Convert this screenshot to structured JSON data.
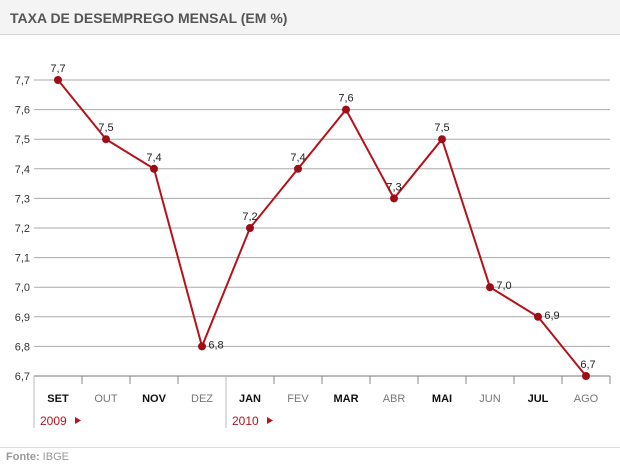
{
  "title": "TAXA DE DESEMPREGO MENSAL (EM %)",
  "source": {
    "label": "Fonte:",
    "value": "IBGE"
  },
  "chart_data": {
    "type": "line",
    "title": "TAXA DE DESEMPREGO MENSAL (EM %)",
    "categories": [
      "SET",
      "OUT",
      "NOV",
      "DEZ",
      "JAN",
      "FEV",
      "MAR",
      "ABR",
      "MAI",
      "JUN",
      "JUL",
      "AGO"
    ],
    "bold_categories": [
      "SET",
      "NOV",
      "JAN",
      "MAR",
      "MAI",
      "JUL"
    ],
    "values": [
      7.7,
      7.5,
      7.4,
      6.8,
      7.2,
      7.4,
      7.6,
      7.3,
      7.5,
      7.0,
      6.9,
      6.7
    ],
    "value_labels": [
      "7,7",
      "7,5",
      "7,4",
      "6,8",
      "7,2",
      "7,4",
      "7,6",
      "7,3",
      "7,5",
      "7,0",
      "6,9",
      "6,7"
    ],
    "yticks": [
      "6,7",
      "6,8",
      "6,9",
      "7,0",
      "7,1",
      "7,2",
      "7,3",
      "7,4",
      "7,5",
      "7,6",
      "7,7"
    ],
    "ylim": [
      6.7,
      7.7
    ],
    "years": [
      {
        "label": "2009",
        "start": "SET"
      },
      {
        "label": "2010",
        "start": "JAN"
      }
    ],
    "grid": true,
    "line_color": "#b5121b",
    "year_color": "#b5121b"
  }
}
